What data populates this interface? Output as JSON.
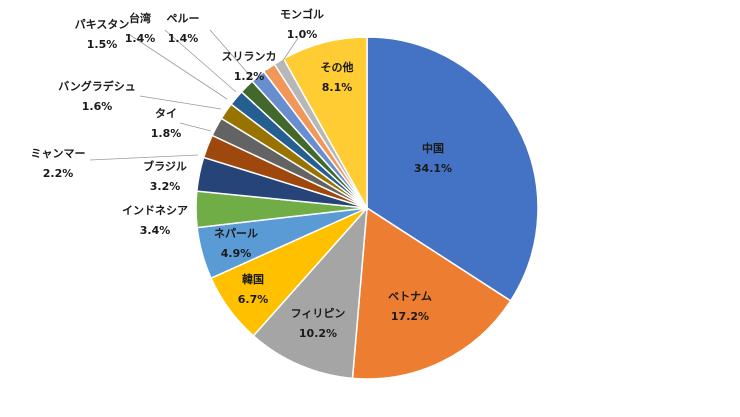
{
  "chart_data": {
    "type": "pie",
    "title": "",
    "start": "top, clockwise",
    "slices": [
      {
        "name": "中国",
        "value": 34.1,
        "label": "34.1%",
        "color": "#4472c4"
      },
      {
        "name": "ベトナム",
        "value": 17.2,
        "label": "17.2%",
        "color": "#ed7d31"
      },
      {
        "name": "フィリピン",
        "value": 10.2,
        "label": "10.2%",
        "color": "#a5a5a5"
      },
      {
        "name": "韓国",
        "value": 6.7,
        "label": "6.7%",
        "color": "#ffc000"
      },
      {
        "name": "ネパール",
        "value": 4.9,
        "label": "4.9%",
        "color": "#5b9bd5"
      },
      {
        "name": "インドネシア",
        "value": 3.4,
        "label": "3.4%",
        "color": "#70ad47"
      },
      {
        "name": "ブラジル",
        "value": 3.2,
        "label": "3.2%",
        "color": "#264478"
      },
      {
        "name": "ミャンマー",
        "value": 2.2,
        "label": "2.2%",
        "color": "#9e480e"
      },
      {
        "name": "タイ",
        "value": 1.8,
        "label": "1.8%",
        "color": "#636363"
      },
      {
        "name": "バングラデシュ",
        "value": 1.6,
        "label": "1.6%",
        "color": "#997300"
      },
      {
        "name": "パキスタン",
        "value": 1.5,
        "label": "1.5%",
        "color": "#255e91"
      },
      {
        "name": "台湾",
        "value": 1.4,
        "label": "1.4%",
        "color": "#43682b"
      },
      {
        "name": "ペルー",
        "value": 1.4,
        "label": "1.4%",
        "color": "#698ed0"
      },
      {
        "name": "スリランカ",
        "value": 1.2,
        "label": "1.2%",
        "color": "#f1975a"
      },
      {
        "name": "モンゴル",
        "value": 1.0,
        "label": "1.0%",
        "color": "#b7b7b7"
      },
      {
        "name": "その他",
        "value": 8.1,
        "label": "8.1%",
        "color": "#ffcd33"
      }
    ]
  }
}
